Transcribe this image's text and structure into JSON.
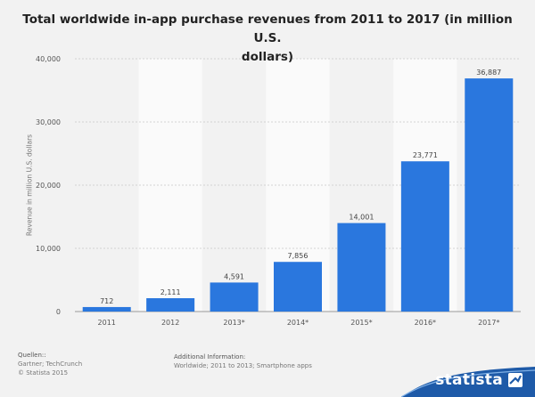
{
  "chart_data": {
    "type": "bar",
    "title": "Total worldwide in-app purchase revenues from 2011 to 2017 (in million U.S. dollars)",
    "title_lines": [
      "Total worldwide in-app purchase revenues from 2011 to 2017 (in million U.S.",
      "dollars)"
    ],
    "xlabel": "",
    "ylabel": "Revenue in million U.S. dollars",
    "categories": [
      "2011",
      "2012",
      "2013*",
      "2014*",
      "2015*",
      "2016*",
      "2017*"
    ],
    "values": [
      712,
      2111,
      4591,
      7856,
      14001,
      23771,
      36887
    ],
    "value_labels": [
      "712",
      "2,111",
      "4,591",
      "7,856",
      "14,001",
      "23,771",
      "36,887"
    ],
    "ylim": [
      0,
      40000
    ],
    "yticks": [
      0,
      10000,
      20000,
      30000,
      40000
    ],
    "ytick_labels": [
      "0",
      "10,000",
      "20,000",
      "30,000",
      "40,000"
    ],
    "bar_color": "#2a77de",
    "grid": true,
    "legend": "none"
  },
  "footer": {
    "sources_header": "Quellen::",
    "sources_lines": [
      "Gartner; TechCrunch",
      "© Statista 2015"
    ],
    "info_header": "Additional Information:",
    "info_text": "Worldwide; 2011 to 2013; Smartphone apps"
  },
  "brand": {
    "name": "statista",
    "color": "#1e5aa8"
  }
}
